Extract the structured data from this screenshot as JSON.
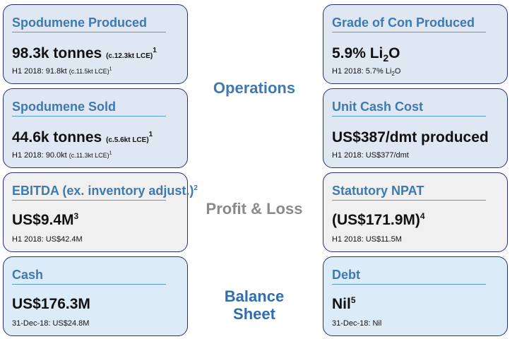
{
  "sections": {
    "operations": "Operations",
    "profit_loss": "Profit & Loss",
    "balance_sheet_line1": "Balance",
    "balance_sheet_line2": "Sheet"
  },
  "cards": {
    "spodumene_produced": {
      "title": "Spodumene Produced",
      "value": "98.3k tonnes",
      "value_note": "(c.12.3kt LCE)",
      "value_note_sup": "1",
      "compare_prefix": "H1 2018: 91.8kt",
      "compare_note": "(c.11.5kt LCE)",
      "compare_sup": "1"
    },
    "grade_of_con": {
      "title": "Grade of Con Produced",
      "value_pre": "5.9% Li",
      "value_sub": "2",
      "value_post": "O",
      "compare_pre": "H1 2018: 5.7% Li",
      "compare_sub": "2",
      "compare_post": "O"
    },
    "spodumene_sold": {
      "title": "Spodumene Sold",
      "value": "44.6k tonnes",
      "value_note": "(c.5.6kt LCE)",
      "value_note_sup": "1",
      "compare_prefix": "H1 2018: 90.0kt",
      "compare_note": "(c.11.3kt LCE)",
      "compare_sup": "1"
    },
    "unit_cash_cost": {
      "title": "Unit Cash Cost",
      "value": "US$387/dmt produced",
      "compare": "H1 2018: US$377/dmt"
    },
    "ebitda": {
      "title": "EBITDA (ex. inventory adjust.)",
      "title_sup": "2",
      "value": "US$9.4M",
      "value_sup": "3",
      "compare": "H1 2018: US$42.4M"
    },
    "statutory_npat": {
      "title": "Statutory NPAT",
      "value": "(US$171.9M)",
      "value_sup": "4",
      "compare": "H1 2018: US$11.5M"
    },
    "cash": {
      "title": "Cash",
      "value": "US$176.3M",
      "compare": "31-Dec-18: US$24.8M"
    },
    "debt": {
      "title": "Debt",
      "value": "Nil",
      "value_sup": "5",
      "compare": "31-Dec-18: Nil"
    }
  },
  "colors": {
    "border": "#2b2f7a",
    "title_blue": "#3f79b0",
    "operations_bg": "#dfe7f3",
    "pl_bg": "#f0f0f0",
    "balance_bg": "#dcebf8"
  }
}
